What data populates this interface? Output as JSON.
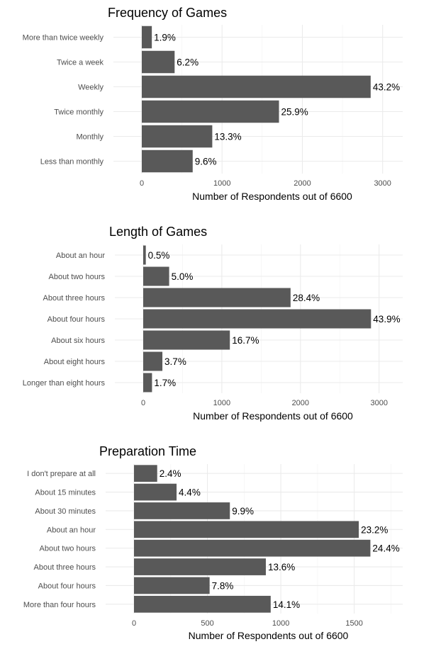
{
  "chart_data": [
    {
      "type": "bar",
      "orientation": "horizontal",
      "title": "Frequency of Games",
      "xlabel": "Number of Respondents out of 6600",
      "ylabel": "",
      "categories": [
        "More than twice weekly",
        "Twice a week",
        "Weekly",
        "Twice monthly",
        "Monthly",
        "Less than monthly"
      ],
      "values": [
        125,
        409,
        2851,
        1709,
        878,
        634
      ],
      "labels": [
        "1.9%",
        "6.2%",
        "43.2%",
        "25.9%",
        "13.3%",
        "9.6%"
      ],
      "xticks": [
        0,
        1000,
        2000,
        3000
      ],
      "xlim": [
        0,
        3250
      ],
      "grid": true,
      "legend": "none",
      "bar_color": "#595959"
    },
    {
      "type": "bar",
      "orientation": "horizontal",
      "title": "Length of Games",
      "xlabel": "Number of Respondents out of 6600",
      "ylabel": "",
      "categories": [
        "About an hour",
        "About two hours",
        "About three hours",
        "About four hours",
        "About six hours",
        "About eight hours",
        "Longer than eight hours"
      ],
      "values": [
        33,
        330,
        1874,
        2897,
        1102,
        244,
        112
      ],
      "labels": [
        "0.5%",
        "5.0%",
        "28.4%",
        "43.9%",
        "16.7%",
        "3.7%",
        "1.7%"
      ],
      "xticks": [
        0,
        1000,
        2000,
        3000
      ],
      "xlim": [
        0,
        3300
      ],
      "grid": true,
      "legend": "none",
      "bar_color": "#595959"
    },
    {
      "type": "bar",
      "orientation": "horizontal",
      "title": "Preparation Time",
      "xlabel": "Number of Respondents out of 6600",
      "ylabel": "",
      "categories": [
        "I don't prepare at all",
        "About 15 minutes",
        "About 30 minutes",
        "About an hour",
        "About two hours",
        "About three hours",
        "About four hours",
        "More than four hours"
      ],
      "values": [
        158,
        290,
        653,
        1531,
        1610,
        898,
        515,
        931
      ],
      "labels": [
        "2.4%",
        "4.4%",
        "9.9%",
        "23.2%",
        "24.4%",
        "13.6%",
        "7.8%",
        "14.1%"
      ],
      "xticks": [
        0,
        500,
        1000,
        1500
      ],
      "xlim": [
        0,
        1830
      ],
      "grid": true,
      "legend": "none",
      "bar_color": "#595959"
    }
  ]
}
